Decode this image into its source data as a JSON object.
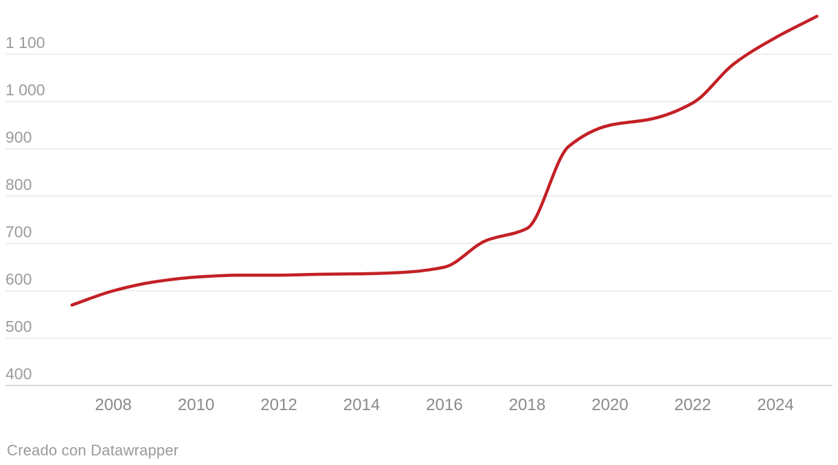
{
  "chart_data": {
    "type": "line",
    "x": [
      2007,
      2008,
      2009,
      2010,
      2011,
      2012,
      2013,
      2014,
      2015,
      2016,
      2017,
      2018,
      2019,
      2020,
      2021,
      2022,
      2023,
      2024,
      2025
    ],
    "values": [
      570,
      600,
      619,
      629,
      633,
      633,
      635,
      636,
      639,
      650,
      706,
      732,
      905,
      950,
      963,
      997,
      1080,
      1135,
      1180
    ],
    "y_ticks": [
      {
        "value": 400,
        "label": "400"
      },
      {
        "value": 500,
        "label": "500"
      },
      {
        "value": 600,
        "label": "600"
      },
      {
        "value": 700,
        "label": "700"
      },
      {
        "value": 800,
        "label": "800"
      },
      {
        "value": 900,
        "label": "900"
      },
      {
        "value": 1000,
        "label": "1 000"
      },
      {
        "value": 1100,
        "label": "1 100"
      }
    ],
    "x_ticks": [
      {
        "value": 2008,
        "label": "2008"
      },
      {
        "value": 2010,
        "label": "2010"
      },
      {
        "value": 2012,
        "label": "2012"
      },
      {
        "value": 2014,
        "label": "2014"
      },
      {
        "value": 2016,
        "label": "2016"
      },
      {
        "value": 2018,
        "label": "2018"
      },
      {
        "value": 2020,
        "label": "2020"
      },
      {
        "value": 2022,
        "label": "2022"
      },
      {
        "value": 2024,
        "label": "2024"
      }
    ],
    "xlim": [
      2007,
      2025
    ],
    "ylim": [
      400,
      1100
    ],
    "grid": "horizontal",
    "legend": "none"
  },
  "footer": {
    "attribution": "Creado con Datawrapper"
  },
  "colors": {
    "line": "#c32026",
    "grid": "#e9e9e9",
    "axis_baseline": "#cccccc",
    "x_tick_text": "#8a8a8a",
    "y_tick_text": "#9b9b9b",
    "footer_text": "#9a9a9a",
    "background": "#ffffff"
  }
}
